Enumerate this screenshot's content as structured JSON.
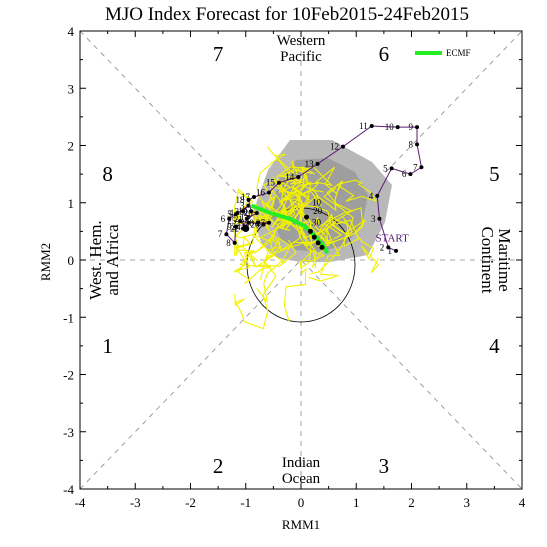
{
  "chart_data": {
    "type": "line",
    "title": "MJO Index Forecast for 10Feb2015-24Feb2015",
    "xlabel": "RMM1",
    "ylabel": "RMM2",
    "xlim": [
      -4,
      4
    ],
    "ylim": [
      -4,
      4
    ],
    "x_ticks": [
      "-4",
      "-3",
      "-2",
      "-1",
      "0",
      "1",
      "2",
      "3",
      "4"
    ],
    "y_ticks": [
      "-4",
      "-3",
      "-2",
      "-1",
      "0",
      "1",
      "2",
      "3",
      "4"
    ],
    "grid": "dashed diagonals and axes",
    "phases": [
      {
        "label": "1",
        "x": -3.5,
        "y": -1.5
      },
      {
        "label": "2",
        "x": -1.5,
        "y": -3.6
      },
      {
        "label": "3",
        "x": 1.5,
        "y": -3.6
      },
      {
        "label": "4",
        "x": 3.5,
        "y": -1.5
      },
      {
        "label": "5",
        "x": 3.5,
        "y": 1.5
      },
      {
        "label": "6",
        "x": 1.5,
        "y": 3.6
      },
      {
        "label": "7",
        "x": -1.5,
        "y": 3.6
      },
      {
        "label": "8",
        "x": -3.5,
        "y": 1.5
      }
    ],
    "regions": {
      "top": [
        "Western",
        "Pacific"
      ],
      "bottom": [
        "Indian",
        "Ocean"
      ],
      "left": [
        "West. Hem.",
        "and Africa"
      ],
      "right": [
        "Maritime",
        "Continent"
      ]
    },
    "legend": {
      "label": "ECMF",
      "color": "#22ee22",
      "position": "top-right"
    },
    "start_label": "START",
    "observed_series": {
      "name": "",
      "color": "#5a1a78",
      "points": [
        {
          "n": "1",
          "x": 1.72,
          "y": 0.16
        },
        {
          "n": "2",
          "x": 1.58,
          "y": 0.22
        },
        {
          "n": "3",
          "x": 1.42,
          "y": 0.72
        },
        {
          "n": "4",
          "x": 1.38,
          "y": 1.12
        },
        {
          "n": "5",
          "x": 1.64,
          "y": 1.6
        },
        {
          "n": "6",
          "x": 1.98,
          "y": 1.5
        },
        {
          "n": "7",
          "x": 2.18,
          "y": 1.62
        },
        {
          "n": "8",
          "x": 2.1,
          "y": 2.02
        },
        {
          "n": "9",
          "x": 2.1,
          "y": 2.32
        },
        {
          "n": "10",
          "x": 1.75,
          "y": 2.32
        },
        {
          "n": "11",
          "x": 1.28,
          "y": 2.34
        },
        {
          "n": "12",
          "x": 0.76,
          "y": 1.98
        },
        {
          "n": "13",
          "x": 0.3,
          "y": 1.68
        },
        {
          "n": "14",
          "x": -0.05,
          "y": 1.45
        },
        {
          "n": "15",
          "x": -0.4,
          "y": 1.35
        },
        {
          "n": "16",
          "x": -0.58,
          "y": 1.18
        },
        {
          "n": "17",
          "x": -0.85,
          "y": 1.1
        },
        {
          "n": "18",
          "x": -0.95,
          "y": 1.05
        },
        {
          "n": "19",
          "x": -0.9,
          "y": 0.85
        },
        {
          "n": "20",
          "x": -0.8,
          "y": 0.82
        },
        {
          "n": "21",
          "x": -0.98,
          "y": 0.72
        },
        {
          "n": "22",
          "x": -1.05,
          "y": 0.55
        },
        {
          "n": "23",
          "x": -0.95,
          "y": 0.65
        },
        {
          "n": "24",
          "x": -1.02,
          "y": 0.58
        },
        {
          "n": "25",
          "x": -1.1,
          "y": 0.68
        },
        {
          "n": "26",
          "x": -0.68,
          "y": 0.62
        },
        {
          "n": "27",
          "x": -0.58,
          "y": 0.65
        },
        {
          "n": "28",
          "x": -0.78,
          "y": 0.65
        }
      ]
    },
    "analysis_series": {
      "color": "#5a1a78",
      "points": [
        {
          "n": "1",
          "x": -0.95,
          "y": 0.75
        },
        {
          "n": "2",
          "x": -1.05,
          "y": 0.85
        },
        {
          "n": "3",
          "x": -0.95,
          "y": 0.95
        },
        {
          "n": "4",
          "x": -1.15,
          "y": 0.82
        },
        {
          "n": "5",
          "x": -1.18,
          "y": 0.8
        },
        {
          "n": "6",
          "x": -1.3,
          "y": 0.72
        },
        {
          "n": "7",
          "x": -1.35,
          "y": 0.45
        },
        {
          "n": "8",
          "x": -1.2,
          "y": 0.3
        },
        {
          "n": "9",
          "x": -1.18,
          "y": 0.58
        }
      ]
    },
    "forecast_mean": {
      "name": "ECMF",
      "color": "#22ee22",
      "x": [
        -0.9,
        -0.55,
        -0.2,
        0.05,
        0.25,
        0.38,
        0.48
      ],
      "y": [
        0.95,
        0.82,
        0.72,
        0.6,
        0.42,
        0.28,
        0.12
      ]
    },
    "forecast_markers": {
      "x": [
        -1.0,
        0.1,
        0.17,
        0.24,
        0.31,
        0.38
      ],
      "y": [
        0.55,
        0.75,
        0.5,
        0.4,
        0.3,
        0.22
      ]
    },
    "forecast_labels": [
      {
        "n": "10",
        "x": 0.28,
        "y": 0.95
      },
      {
        "n": "20",
        "x": 0.3,
        "y": 0.8
      },
      {
        "n": "30",
        "x": 0.28,
        "y": 0.6
      }
    ],
    "start_label_pos": {
      "x": 1.65,
      "y": 0.32
    },
    "ellipse_center": {
      "x": 0.0,
      "y": -0.35
    }
  }
}
